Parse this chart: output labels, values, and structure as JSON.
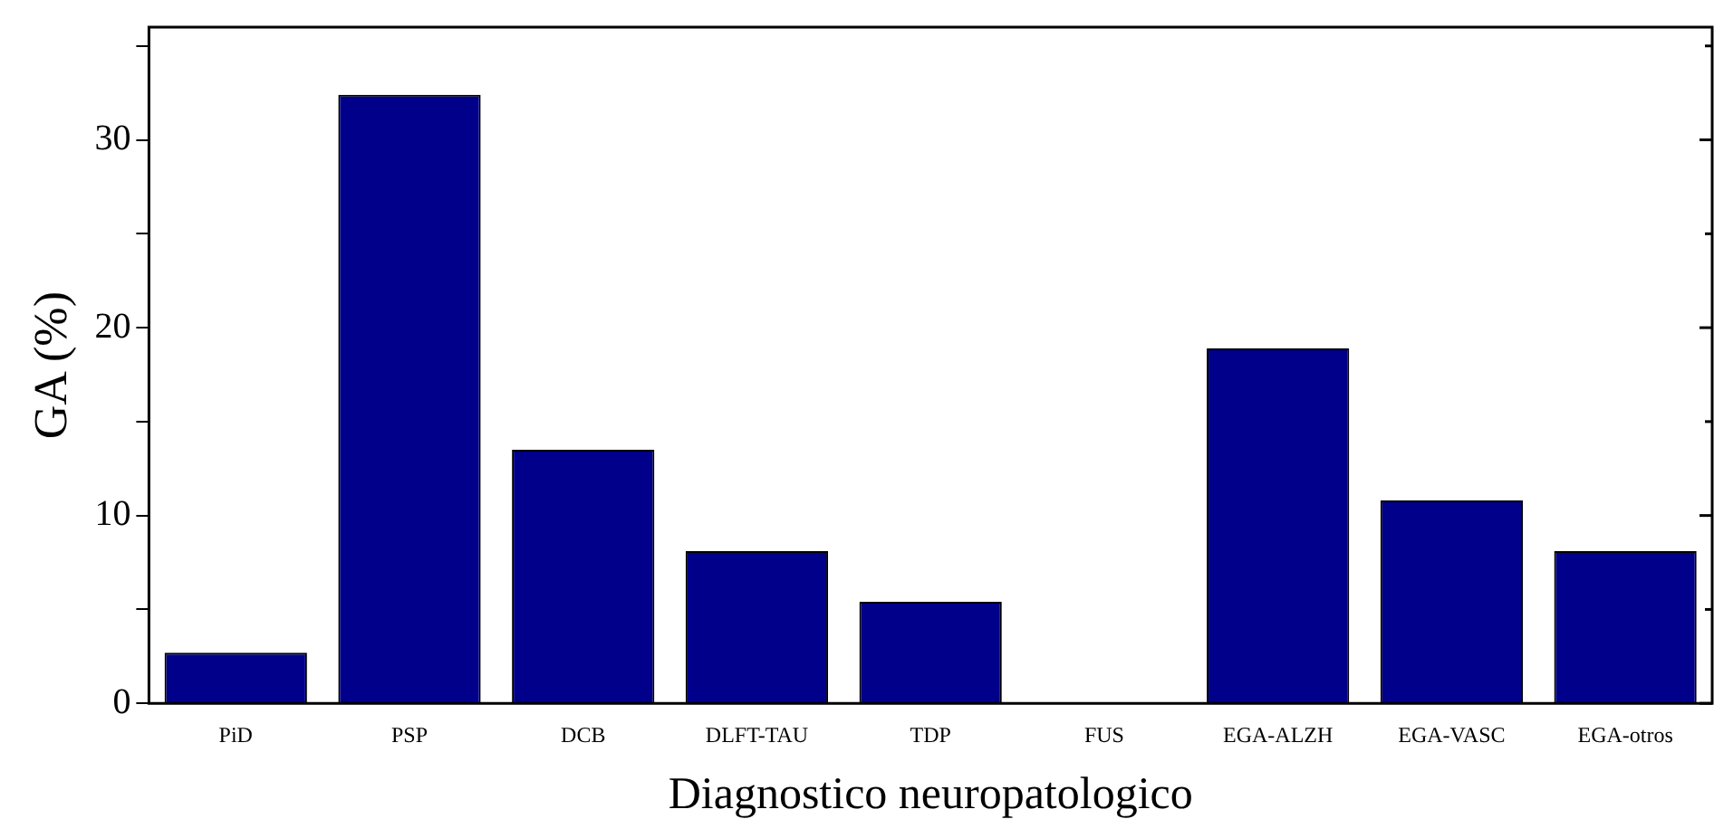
{
  "chart_data": {
    "type": "bar",
    "xlabel": "Diagnostico neuropatologico",
    "ylabel": "GA (%)",
    "categories": [
      "PiD",
      "PSP",
      "DCB",
      "DLFT-TAU",
      "TDP",
      "FUS",
      "EGA-ALZH",
      "EGA-VASC",
      "EGA-otros"
    ],
    "values": [
      2.7,
      32.4,
      13.5,
      8.1,
      5.4,
      0,
      18.9,
      10.8,
      8.1
    ],
    "color": "#00008b",
    "ylim": [
      0,
      36
    ],
    "yticks": [
      0,
      {
        "value": 5,
        "label": null
      },
      10,
      {
        "value": 15,
        "label": null
      },
      20,
      {
        "value": 25,
        "label": null
      },
      30,
      {
        "value": 35,
        "label": null
      }
    ],
    "grid": false,
    "legend": false
  }
}
